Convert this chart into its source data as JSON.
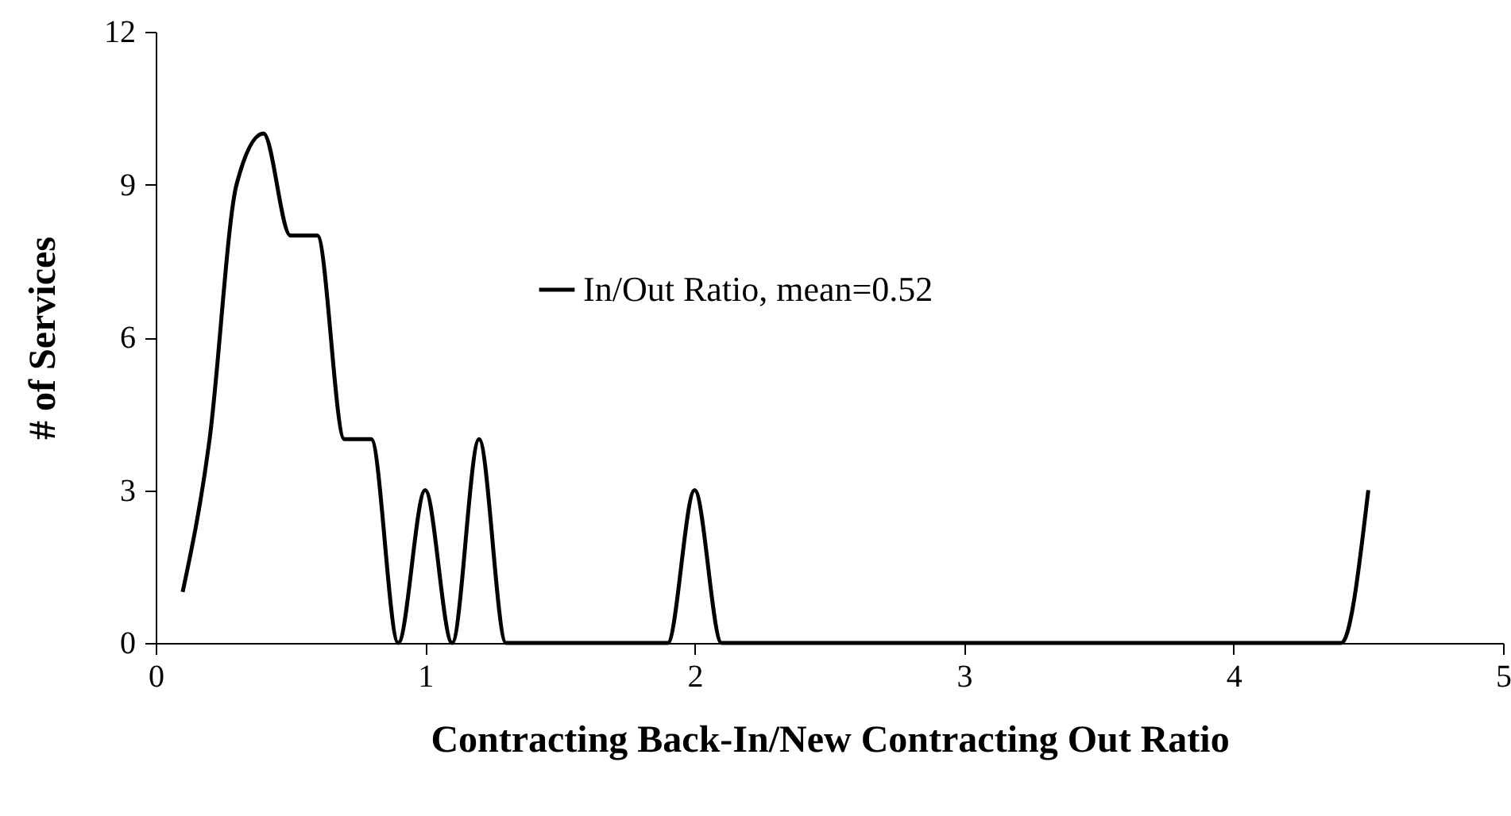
{
  "chart_data": {
    "type": "line",
    "xlabel": "Contracting Back-In/New Contracting Out Ratio",
    "ylabel": "# of Services",
    "x": [
      0.1,
      0.2,
      0.3,
      0.4,
      0.5,
      0.6,
      0.7,
      0.8,
      0.9,
      1.0,
      1.1,
      1.2,
      1.3,
      1.4,
      1.5,
      1.6,
      1.7,
      1.8,
      1.9,
      2.0,
      2.1,
      2.2,
      2.3,
      2.4,
      2.5,
      2.6,
      2.7,
      2.8,
      2.9,
      3.0,
      3.1,
      3.2,
      3.3,
      3.4,
      3.5,
      3.6,
      3.7,
      3.8,
      3.9,
      4.0,
      4.1,
      4.2,
      4.3,
      4.4,
      4.5
    ],
    "series": [
      {
        "name": "In/Out Ratio, mean=0.52",
        "color": "#000000",
        "values": [
          1,
          4,
          9,
          10,
          8,
          8,
          4,
          4,
          0,
          3,
          0,
          4,
          0,
          0,
          0,
          0,
          0,
          0,
          0,
          3,
          0,
          0,
          0,
          0,
          0,
          0,
          0,
          0,
          0,
          0,
          0,
          0,
          0,
          0,
          0,
          0,
          0,
          0,
          0,
          0,
          0,
          0,
          0,
          0,
          3
        ]
      }
    ],
    "xlim": [
      0,
      5
    ],
    "xticks": [
      0,
      1,
      2,
      3,
      4,
      5
    ],
    "ylim": [
      0,
      12
    ],
    "yticks": [
      0,
      3,
      6,
      9,
      12
    ],
    "grid": false,
    "legend": "top",
    "marker": "none",
    "line_style": "solid"
  }
}
